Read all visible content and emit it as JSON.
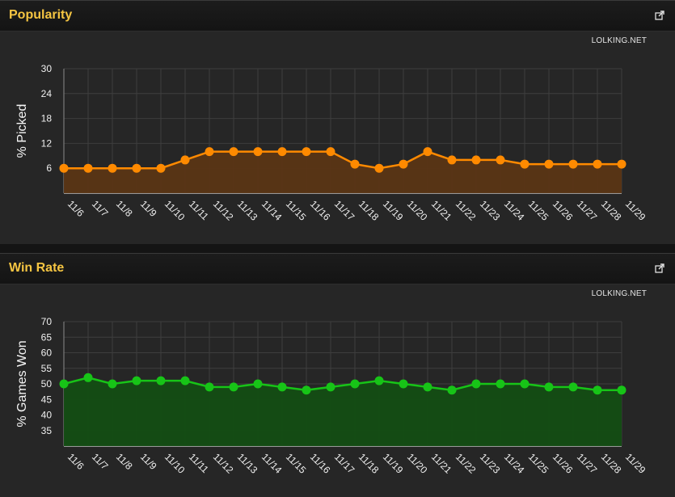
{
  "panels": [
    {
      "title": "Popularity",
      "credit": "LOLKING.NET",
      "share_icon": "share-icon"
    },
    {
      "title": "Win Rate",
      "credit": "LOLKING.NET",
      "share_icon": "share-icon"
    }
  ],
  "colors": {
    "popularity_line": "#ff8a00",
    "popularity_fill": "#5a3514",
    "winrate_line": "#17c417",
    "winrate_fill": "#134d13",
    "title": "#f5c542",
    "grid": "#3e3e3e"
  },
  "chart_data": [
    {
      "type": "area",
      "title": "",
      "xlabel": "",
      "ylabel": "% Picked",
      "categories": [
        "11/6",
        "11/7",
        "11/8",
        "11/9",
        "11/10",
        "11/11",
        "11/12",
        "11/13",
        "11/14",
        "11/15",
        "11/16",
        "11/17",
        "11/18",
        "11/19",
        "11/20",
        "11/21",
        "11/22",
        "11/23",
        "11/24",
        "11/25",
        "11/26",
        "11/27",
        "11/28",
        "11/29"
      ],
      "yticks": [
        6,
        12,
        18,
        24,
        30
      ],
      "ylim": [
        0,
        30
      ],
      "grid": true,
      "series": [
        {
          "values": [
            6,
            6,
            6,
            6,
            6,
            8,
            10,
            10,
            10,
            10,
            10,
            10,
            7,
            6,
            7,
            10,
            8,
            8,
            8,
            7,
            7,
            7,
            7,
            7
          ]
        }
      ]
    },
    {
      "type": "area",
      "title": "",
      "xlabel": "",
      "ylabel": "% Games Won",
      "categories": [
        "11/6",
        "11/7",
        "11/8",
        "11/9",
        "11/10",
        "11/11",
        "11/12",
        "11/13",
        "11/14",
        "11/15",
        "11/16",
        "11/17",
        "11/18",
        "11/19",
        "11/20",
        "11/21",
        "11/22",
        "11/23",
        "11/24",
        "11/25",
        "11/26",
        "11/27",
        "11/28",
        "11/29"
      ],
      "yticks": [
        35,
        40,
        45,
        50,
        55,
        60,
        65,
        70
      ],
      "ylim": [
        30,
        70
      ],
      "grid": true,
      "series": [
        {
          "values": [
            50,
            52,
            50,
            51,
            51,
            51,
            49,
            49,
            50,
            49,
            48,
            49,
            50,
            51,
            50,
            49,
            48,
            50,
            50,
            50,
            49,
            49,
            48,
            48
          ]
        }
      ]
    }
  ]
}
